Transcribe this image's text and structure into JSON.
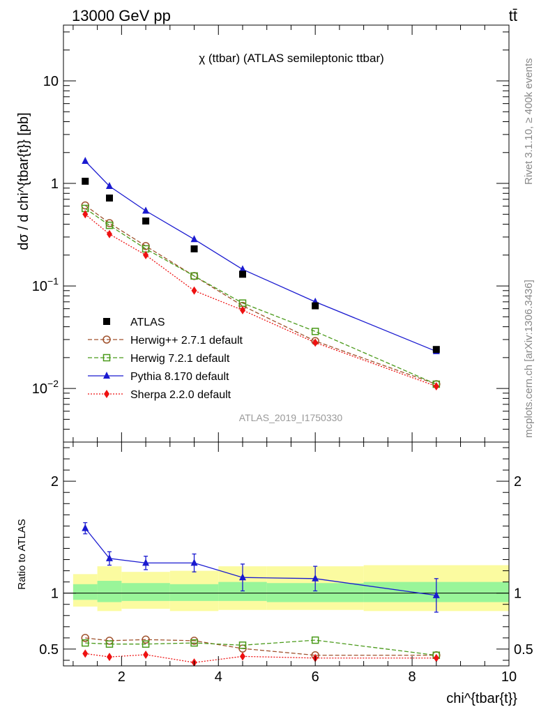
{
  "header": {
    "left": "13000 GeV pp",
    "right": "tt̄"
  },
  "side_text": {
    "rivet": "Rivet 3.1.10, ≥ 400k events",
    "mcplots": "mcplots.cern.ch [arXiv:1306.3436]"
  },
  "chart_data": [
    {
      "type": "scatter",
      "title": "χ (ttbar) (ATLAS semileptonic ttbar)",
      "ylabel": "dσ / d chi^{tbar{t}} [pb]",
      "watermark": "ATLAS_2019_I1750330",
      "yscale": "log",
      "ylim": [
        0.003,
        35
      ],
      "xlim": [
        0.8,
        10
      ],
      "yticks": [
        {
          "v": 0.01,
          "base": "10",
          "exp": "−2"
        },
        {
          "v": 0.1,
          "base": "10",
          "exp": "−1"
        },
        {
          "v": 1,
          "base": "1",
          "exp": ""
        },
        {
          "v": 10,
          "base": "10",
          "exp": ""
        }
      ],
      "legend": {
        "position": "bottom-left"
      },
      "series": [
        {
          "name": "ATLAS",
          "color": "#000000",
          "marker": "square-filled",
          "line": "none",
          "x": [
            1.25,
            1.75,
            2.5,
            3.5,
            4.5,
            6.0,
            8.5
          ],
          "y": [
            1.05,
            0.72,
            0.43,
            0.23,
            0.13,
            0.064,
            0.024
          ]
        },
        {
          "name": "Herwig++ 2.7.1 default",
          "color": "#a0522d",
          "marker": "circle-open",
          "line": "dashed",
          "x": [
            1.25,
            1.75,
            2.5,
            3.5,
            4.5,
            6.0,
            8.5
          ],
          "y": [
            0.61,
            0.41,
            0.245,
            0.125,
            0.064,
            0.029,
            0.011
          ]
        },
        {
          "name": "Herwig 7.2.1 default",
          "color": "#4a9a1a",
          "marker": "square-open",
          "line": "dashed",
          "x": [
            1.25,
            1.75,
            2.5,
            3.5,
            4.5,
            6.0,
            8.5
          ],
          "y": [
            0.57,
            0.39,
            0.23,
            0.125,
            0.068,
            0.036,
            0.011
          ]
        },
        {
          "name": "Pythia 8.170 default",
          "color": "#1a1ad0",
          "marker": "triangle-filled",
          "line": "solid",
          "x": [
            1.25,
            1.75,
            2.5,
            3.5,
            4.5,
            6.0,
            8.5
          ],
          "y": [
            1.65,
            0.94,
            0.54,
            0.285,
            0.145,
            0.07,
            0.023
          ]
        },
        {
          "name": "Sherpa 2.2.0 default",
          "color": "#ee1111",
          "marker": "diamond-filled",
          "line": "dotted",
          "x": [
            1.25,
            1.75,
            2.5,
            3.5,
            4.5,
            6.0,
            8.5
          ],
          "y": [
            0.5,
            0.32,
            0.2,
            0.09,
            0.058,
            0.028,
            0.0105
          ]
        }
      ]
    },
    {
      "type": "scatter",
      "ylabel": "Ratio to ATLAS",
      "xlabel": "chi^{tbar{t}}",
      "ylim": [
        0.35,
        2.35
      ],
      "xlim": [
        0.8,
        10
      ],
      "xticks": [
        2,
        4,
        6,
        8,
        10
      ],
      "yticks": [
        0.5,
        1,
        2
      ],
      "bands": {
        "edges": [
          1.0,
          1.5,
          2.0,
          3.0,
          4.0,
          5.0,
          7.0,
          10.0
        ],
        "stat_lo": [
          0.94,
          0.92,
          0.93,
          0.93,
          0.93,
          0.92,
          0.92
        ],
        "stat_hi": [
          1.08,
          1.11,
          1.09,
          1.08,
          1.1,
          1.09,
          1.1
        ],
        "total_lo": [
          0.88,
          0.84,
          0.86,
          0.84,
          0.85,
          0.85,
          0.84
        ],
        "total_hi": [
          1.17,
          1.24,
          1.19,
          1.2,
          1.24,
          1.24,
          1.25
        ],
        "stat_color": "#99f599",
        "total_color": "#fbfba0"
      },
      "series": [
        {
          "name": "Herwig++ 2.7.1 default",
          "color": "#a0522d",
          "marker": "circle-open",
          "line": "dashed",
          "x": [
            1.25,
            1.75,
            2.5,
            3.5,
            4.5,
            6.0,
            8.5
          ],
          "y": [
            0.6,
            0.575,
            0.585,
            0.575,
            0.505,
            0.445,
            0.445
          ]
        },
        {
          "name": "Herwig 7.2.1 default",
          "color": "#4a9a1a",
          "marker": "square-open",
          "line": "dashed",
          "x": [
            1.25,
            1.75,
            2.5,
            3.5,
            4.5,
            6.0,
            8.5
          ],
          "y": [
            0.555,
            0.545,
            0.545,
            0.555,
            0.535,
            0.58,
            0.445
          ]
        },
        {
          "name": "Pythia 8.170 default",
          "color": "#1a1ad0",
          "marker": "triangle-filled",
          "line": "solid",
          "x": [
            1.25,
            1.75,
            2.5,
            3.5,
            4.5,
            6.0,
            8.5
          ],
          "y": [
            1.58,
            1.31,
            1.27,
            1.27,
            1.14,
            1.13,
            0.98
          ],
          "yerr": [
            0.05,
            0.06,
            0.06,
            0.08,
            0.12,
            0.11,
            0.15
          ]
        },
        {
          "name": "Sherpa 2.2.0 default",
          "color": "#ee1111",
          "marker": "diamond-filled",
          "line": "dotted",
          "x": [
            1.25,
            1.75,
            2.5,
            3.5,
            4.5,
            6.0,
            8.5
          ],
          "y": [
            0.46,
            0.43,
            0.45,
            0.38,
            0.435,
            0.42,
            0.42
          ]
        }
      ]
    }
  ]
}
